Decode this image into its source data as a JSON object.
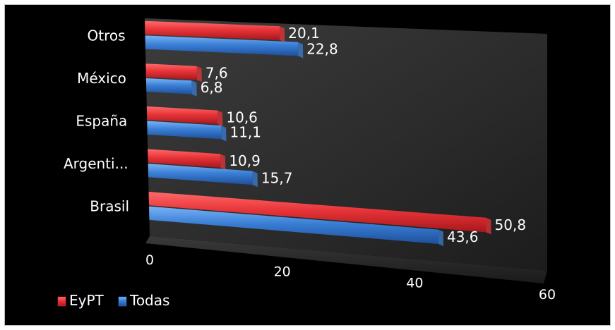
{
  "chart_data": {
    "type": "bar",
    "orientation": "horizontal",
    "style": "3d-perspective",
    "categories": [
      "Brasil",
      "Argenti...",
      "España",
      "México",
      "Otros"
    ],
    "series": [
      {
        "name": "EyPT",
        "color": "#e8353a",
        "values": [
          50.8,
          10.9,
          10.6,
          7.6,
          20.1
        ],
        "labels": [
          "50,8",
          "10,9",
          "10,6",
          "7,6",
          "20,1"
        ]
      },
      {
        "name": "Todas",
        "color": "#3a7fd6",
        "values": [
          43.6,
          15.7,
          11.1,
          6.8,
          22.8
        ],
        "labels": [
          "43,6",
          "15,7",
          "11,1",
          "6,8",
          "22,8"
        ]
      }
    ],
    "xlim": [
      0,
      60
    ],
    "xticks": [
      {
        "value": 0,
        "label": "0"
      },
      {
        "value": 20,
        "label": "20"
      },
      {
        "value": 40,
        "label": "40"
      },
      {
        "value": 60,
        "label": "60"
      }
    ],
    "legend_position": "bottom-left",
    "grid": false
  }
}
